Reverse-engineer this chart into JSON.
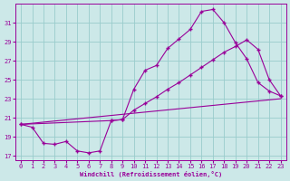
{
  "xlabel": "Windchill (Refroidissement éolien,°C)",
  "bg_color": "#cce8e8",
  "line_color": "#990099",
  "grid_color": "#99cccc",
  "line1_x": [
    0,
    1,
    2,
    3,
    4,
    5,
    6,
    7,
    8,
    9,
    10,
    11,
    12,
    13,
    14,
    15,
    16,
    17,
    18,
    19,
    20,
    21,
    22,
    23
  ],
  "line1_y": [
    20.3,
    20.0,
    18.3,
    18.2,
    18.5,
    17.5,
    17.3,
    17.5,
    20.7,
    20.8,
    24.0,
    26.0,
    26.5,
    28.3,
    29.3,
    30.3,
    32.2,
    32.4,
    31.0,
    28.9,
    27.2,
    24.7,
    23.8,
    23.3
  ],
  "line2_x": [
    0,
    8,
    9,
    10,
    11,
    12,
    13,
    14,
    15,
    16,
    17,
    18,
    19,
    20,
    21,
    22,
    23
  ],
  "line2_y": [
    20.3,
    20.7,
    20.8,
    21.8,
    22.5,
    23.2,
    24.0,
    24.7,
    25.5,
    26.3,
    27.1,
    27.9,
    28.5,
    29.2,
    28.2,
    25.0,
    23.3
  ],
  "line3_x": [
    0,
    23
  ],
  "line3_y": [
    20.3,
    23.0
  ],
  "xlim": [
    -0.5,
    23.5
  ],
  "ylim": [
    16.5,
    33
  ],
  "yticks": [
    17,
    19,
    21,
    23,
    25,
    27,
    29,
    31
  ],
  "xticks": [
    0,
    1,
    2,
    3,
    4,
    5,
    6,
    7,
    8,
    9,
    10,
    11,
    12,
    13,
    14,
    15,
    16,
    17,
    18,
    19,
    20,
    21,
    22,
    23
  ]
}
